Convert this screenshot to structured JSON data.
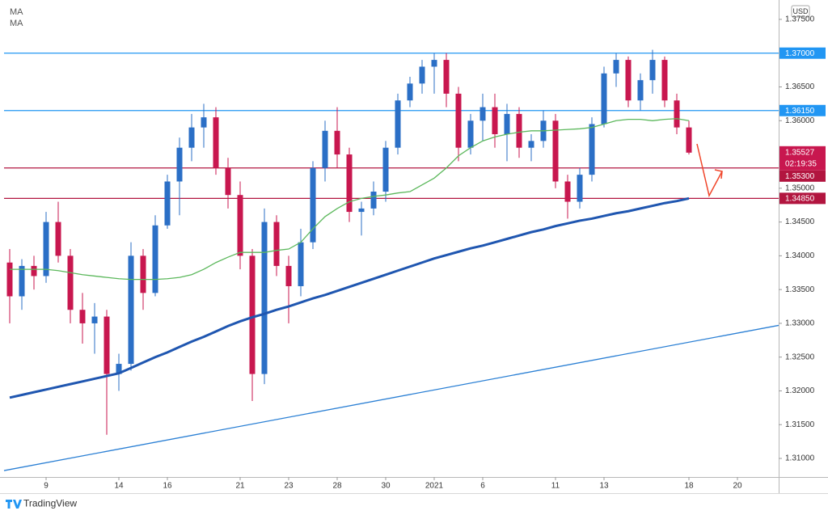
{
  "chart_data": {
    "type": "candlestick",
    "legend": [
      "MA",
      "MA"
    ],
    "currency": "USD",
    "brand": "TradingView",
    "up_color": "#2b6fc6",
    "down_color": "#c8174f",
    "xlim": [
      -0.467,
      63.4
    ],
    "xticks": [
      {
        "value": 3,
        "label": "9"
      },
      {
        "value": 9,
        "label": "14"
      },
      {
        "value": 13,
        "label": "16"
      },
      {
        "value": 19,
        "label": "21"
      },
      {
        "value": 23,
        "label": "23"
      },
      {
        "value": 27,
        "label": "28"
      },
      {
        "value": 31,
        "label": "30"
      },
      {
        "value": 35,
        "label": "2021"
      },
      {
        "value": 39,
        "label": "6"
      },
      {
        "value": 45,
        "label": "11"
      },
      {
        "value": 49,
        "label": "13"
      },
      {
        "value": 56,
        "label": "18"
      },
      {
        "value": 60,
        "label": "20"
      }
    ],
    "ylim": [
      1.30725,
      1.37727
    ],
    "yticks": [
      {
        "value": 1.375,
        "label": "1.37500"
      },
      {
        "value": 1.365,
        "label": "1.36500"
      },
      {
        "value": 1.36,
        "label": "1.36000"
      },
      {
        "value": 1.35,
        "label": "1.35000"
      },
      {
        "value": 1.345,
        "label": "1.34500"
      },
      {
        "value": 1.34,
        "label": "1.34000"
      },
      {
        "value": 1.335,
        "label": "1.33500"
      },
      {
        "value": 1.33,
        "label": "1.33000"
      },
      {
        "value": 1.325,
        "label": "1.32500"
      },
      {
        "value": 1.32,
        "label": "1.32000"
      },
      {
        "value": 1.315,
        "label": "1.31500"
      },
      {
        "value": 1.31,
        "label": "1.31000"
      }
    ],
    "open": [
      1.339,
      1.334,
      1.3385,
      1.337,
      1.345,
      1.34,
      1.332,
      1.33,
      1.331,
      1.3225,
      1.324,
      1.34,
      1.3345,
      1.3445,
      1.351,
      1.356,
      1.359,
      1.3605,
      1.353,
      1.349,
      1.34,
      1.3225,
      1.345,
      1.3385,
      1.3355,
      1.342,
      1.353,
      1.3585,
      1.355,
      1.3465,
      1.347,
      1.3495,
      1.356,
      1.363,
      1.3655,
      1.368,
      1.369,
      1.364,
      1.356,
      1.36,
      1.362,
      1.358,
      1.361,
      1.356,
      1.357,
      1.36,
      1.351,
      1.348,
      1.352,
      1.3595,
      1.367,
      1.369,
      1.363,
      1.366,
      1.369,
      1.363,
      1.359
    ],
    "high": [
      1.341,
      1.3395,
      1.34,
      1.3465,
      1.348,
      1.341,
      1.3345,
      1.333,
      1.332,
      1.3255,
      1.342,
      1.341,
      1.346,
      1.352,
      1.3575,
      1.361,
      1.3625,
      1.362,
      1.3545,
      1.351,
      1.341,
      1.347,
      1.346,
      1.34,
      1.344,
      1.354,
      1.36,
      1.362,
      1.356,
      1.348,
      1.351,
      1.357,
      1.364,
      1.3665,
      1.369,
      1.37,
      1.37,
      1.365,
      1.361,
      1.364,
      1.364,
      1.3625,
      1.362,
      1.358,
      1.3615,
      1.361,
      1.352,
      1.353,
      1.3605,
      1.368,
      1.37,
      1.3695,
      1.367,
      1.3705,
      1.3695,
      1.364,
      1.36
    ],
    "low": [
      1.33,
      1.332,
      1.335,
      1.336,
      1.339,
      1.33,
      1.327,
      1.3255,
      1.3135,
      1.32,
      1.323,
      1.332,
      1.334,
      1.344,
      1.346,
      1.354,
      1.356,
      1.352,
      1.347,
      1.338,
      1.3185,
      1.321,
      1.337,
      1.33,
      1.334,
      1.341,
      1.351,
      1.353,
      1.345,
      1.343,
      1.346,
      1.348,
      1.355,
      1.362,
      1.364,
      1.364,
      1.362,
      1.354,
      1.355,
      1.357,
      1.356,
      1.354,
      1.3545,
      1.354,
      1.356,
      1.35,
      1.3455,
      1.347,
      1.351,
      1.359,
      1.365,
      1.362,
      1.3615,
      1.364,
      1.362,
      1.358,
      1.355
    ],
    "close": [
      1.334,
      1.3385,
      1.337,
      1.345,
      1.34,
      1.332,
      1.33,
      1.331,
      1.3225,
      1.324,
      1.34,
      1.3345,
      1.3445,
      1.351,
      1.356,
      1.359,
      1.3605,
      1.353,
      1.349,
      1.34,
      1.3225,
      1.345,
      1.3385,
      1.3355,
      1.342,
      1.353,
      1.3585,
      1.355,
      1.3465,
      1.347,
      1.3495,
      1.356,
      1.363,
      1.3655,
      1.368,
      1.369,
      1.364,
      1.356,
      1.36,
      1.362,
      1.358,
      1.361,
      1.356,
      1.357,
      1.36,
      1.351,
      1.348,
      1.352,
      1.3595,
      1.367,
      1.369,
      1.363,
      1.366,
      1.369,
      1.363,
      1.359,
      1.35527
    ],
    "moving_averages": [
      {
        "color": "#5cb85c",
        "width": 1.3,
        "values": [
          1.338,
          1.338,
          1.338,
          1.338,
          1.3378,
          1.3375,
          1.3372,
          1.337,
          1.3368,
          1.3366,
          1.3365,
          1.3365,
          1.3365,
          1.3366,
          1.3368,
          1.3372,
          1.338,
          1.339,
          1.3398,
          1.3405,
          1.3405,
          1.3405,
          1.3408,
          1.341,
          1.342,
          1.344,
          1.3458,
          1.347,
          1.348,
          1.3485,
          1.3488,
          1.349,
          1.3493,
          1.3495,
          1.3505,
          1.3515,
          1.353,
          1.3548,
          1.356,
          1.357,
          1.3576,
          1.358,
          1.3583,
          1.3585,
          1.3585,
          1.3586,
          1.3587,
          1.3588,
          1.359,
          1.3595,
          1.36,
          1.3602,
          1.3602,
          1.36,
          1.3602,
          1.3603,
          1.36
        ]
      },
      {
        "color": "#1f56b0",
        "width": 3,
        "values": [
          1.319,
          1.3194,
          1.3198,
          1.3202,
          1.3206,
          1.321,
          1.3214,
          1.3218,
          1.3222,
          1.3226,
          1.3234,
          1.3242,
          1.325,
          1.3257,
          1.3265,
          1.3273,
          1.328,
          1.3288,
          1.3296,
          1.3303,
          1.3309,
          1.3314,
          1.332,
          1.3325,
          1.3331,
          1.3337,
          1.3342,
          1.3348,
          1.3354,
          1.336,
          1.3366,
          1.3372,
          1.3378,
          1.3384,
          1.339,
          1.3396,
          1.3401,
          1.3406,
          1.3411,
          1.3415,
          1.342,
          1.3425,
          1.343,
          1.3435,
          1.3439,
          1.3444,
          1.3448,
          1.3452,
          1.3455,
          1.3459,
          1.3463,
          1.3466,
          1.347,
          1.3474,
          1.3478,
          1.3481,
          1.3485
        ]
      }
    ],
    "trendline": {
      "color": "#2a7fd4",
      "x": [
        -0.467,
        63.4
      ],
      "values": [
        1.3082,
        1.3297
      ]
    },
    "levels": [
      {
        "value": 1.37,
        "label": "1.37000",
        "color": "#2196f3"
      },
      {
        "value": 1.3615,
        "label": "1.36150",
        "color": "#2196f3"
      },
      {
        "value": 1.353,
        "label": "1.35300",
        "color": "#b2153f"
      },
      {
        "value": 1.3485,
        "label": "1.34850",
        "color": "#b2153f"
      }
    ],
    "last_price": {
      "value": 1.35527,
      "label": "1.35527",
      "countdown": "02:19:35",
      "color": "#c8174f"
    }
  }
}
